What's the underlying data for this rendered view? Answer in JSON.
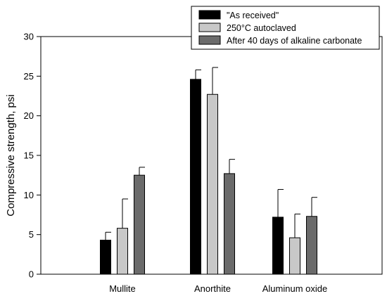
{
  "chart_data": {
    "type": "bar",
    "title": "",
    "xlabel": "",
    "ylabel": "Compressive strength, psi",
    "ylim": [
      0,
      30
    ],
    "yticks": [
      0,
      5,
      10,
      15,
      20,
      25,
      30
    ],
    "grid": false,
    "legend_position": "top-right",
    "categories": [
      "Mullite",
      "Anorthite",
      "Aluminum oxide"
    ],
    "series": [
      {
        "name": "\"As received\"",
        "color": "#000000",
        "values": [
          4.3,
          24.6,
          7.2
        ],
        "errors": [
          1.0,
          1.2,
          3.5
        ]
      },
      {
        "name": "250°C autoclaved",
        "color": "#c8c8c8",
        "values": [
          5.8,
          22.7,
          4.6
        ],
        "errors": [
          3.7,
          3.4,
          3.0
        ]
      },
      {
        "name": "After 40 days of alkaline carbonate",
        "color": "#6b6b6b",
        "values": [
          12.5,
          12.7,
          7.3
        ],
        "errors": [
          1.0,
          1.8,
          2.4
        ]
      }
    ]
  }
}
